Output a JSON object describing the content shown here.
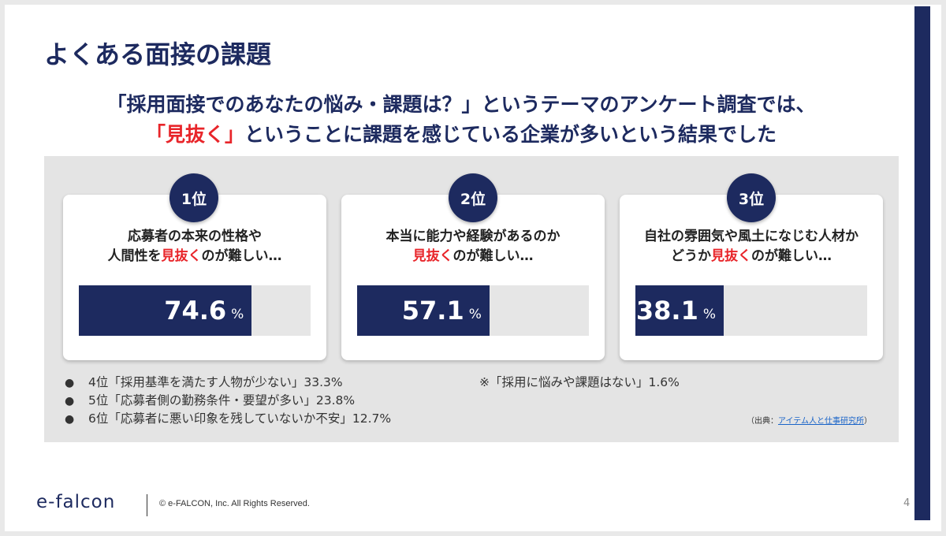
{
  "title": "よくある面接の課題",
  "subtitle": {
    "line1": "「採用面接でのあなたの悩み・課題は？」というテーマのアンケート調査では、",
    "line2_red": "「見抜く」",
    "line2_rest": "ということに課題を感じている企業が多いという結果でした"
  },
  "cards": [
    {
      "rank": "1位",
      "line1": "応募者の本来の性格や",
      "line2_pre": "人間性を",
      "highlight": "見抜く",
      "line2_post": "のが難しい…",
      "value": "74.6",
      "unit": "%",
      "fraction": 0.746
    },
    {
      "rank": "2位",
      "line1": "本当に能力や経験があるのか",
      "line2_pre": "",
      "highlight": "見抜く",
      "line2_post": "のが難しい…",
      "value": "57.1",
      "unit": "%",
      "fraction": 0.571
    },
    {
      "rank": "3位",
      "line1": "自社の雰囲気や風土になじむ人材か",
      "line2_pre": "どうか",
      "highlight": "見抜く",
      "line2_post": "のが難しい…",
      "value": "38.1",
      "unit": "%",
      "fraction": 0.381
    }
  ],
  "others": [
    "4位「採用基準を満たす人物が少ない」33.3%",
    "5位「応募者側の勤務条件・要望が多い」23.8%",
    "6位「応募者に悪い印象を残していないか不安」12.7%"
  ],
  "note": "※「採用に悩みや課題はない」1.6%",
  "source": {
    "prefix": "（出典：",
    "link": "アイテム人と仕事研究所",
    "suffix": "）"
  },
  "footer": {
    "logo": "e-falcon",
    "copyright": "© e-FALCON, Inc. All Rights Reserved.",
    "page": "4"
  },
  "colors": {
    "navy": "#1d2a5f",
    "red": "#e8252a",
    "panel": "#e4e4e4"
  }
}
